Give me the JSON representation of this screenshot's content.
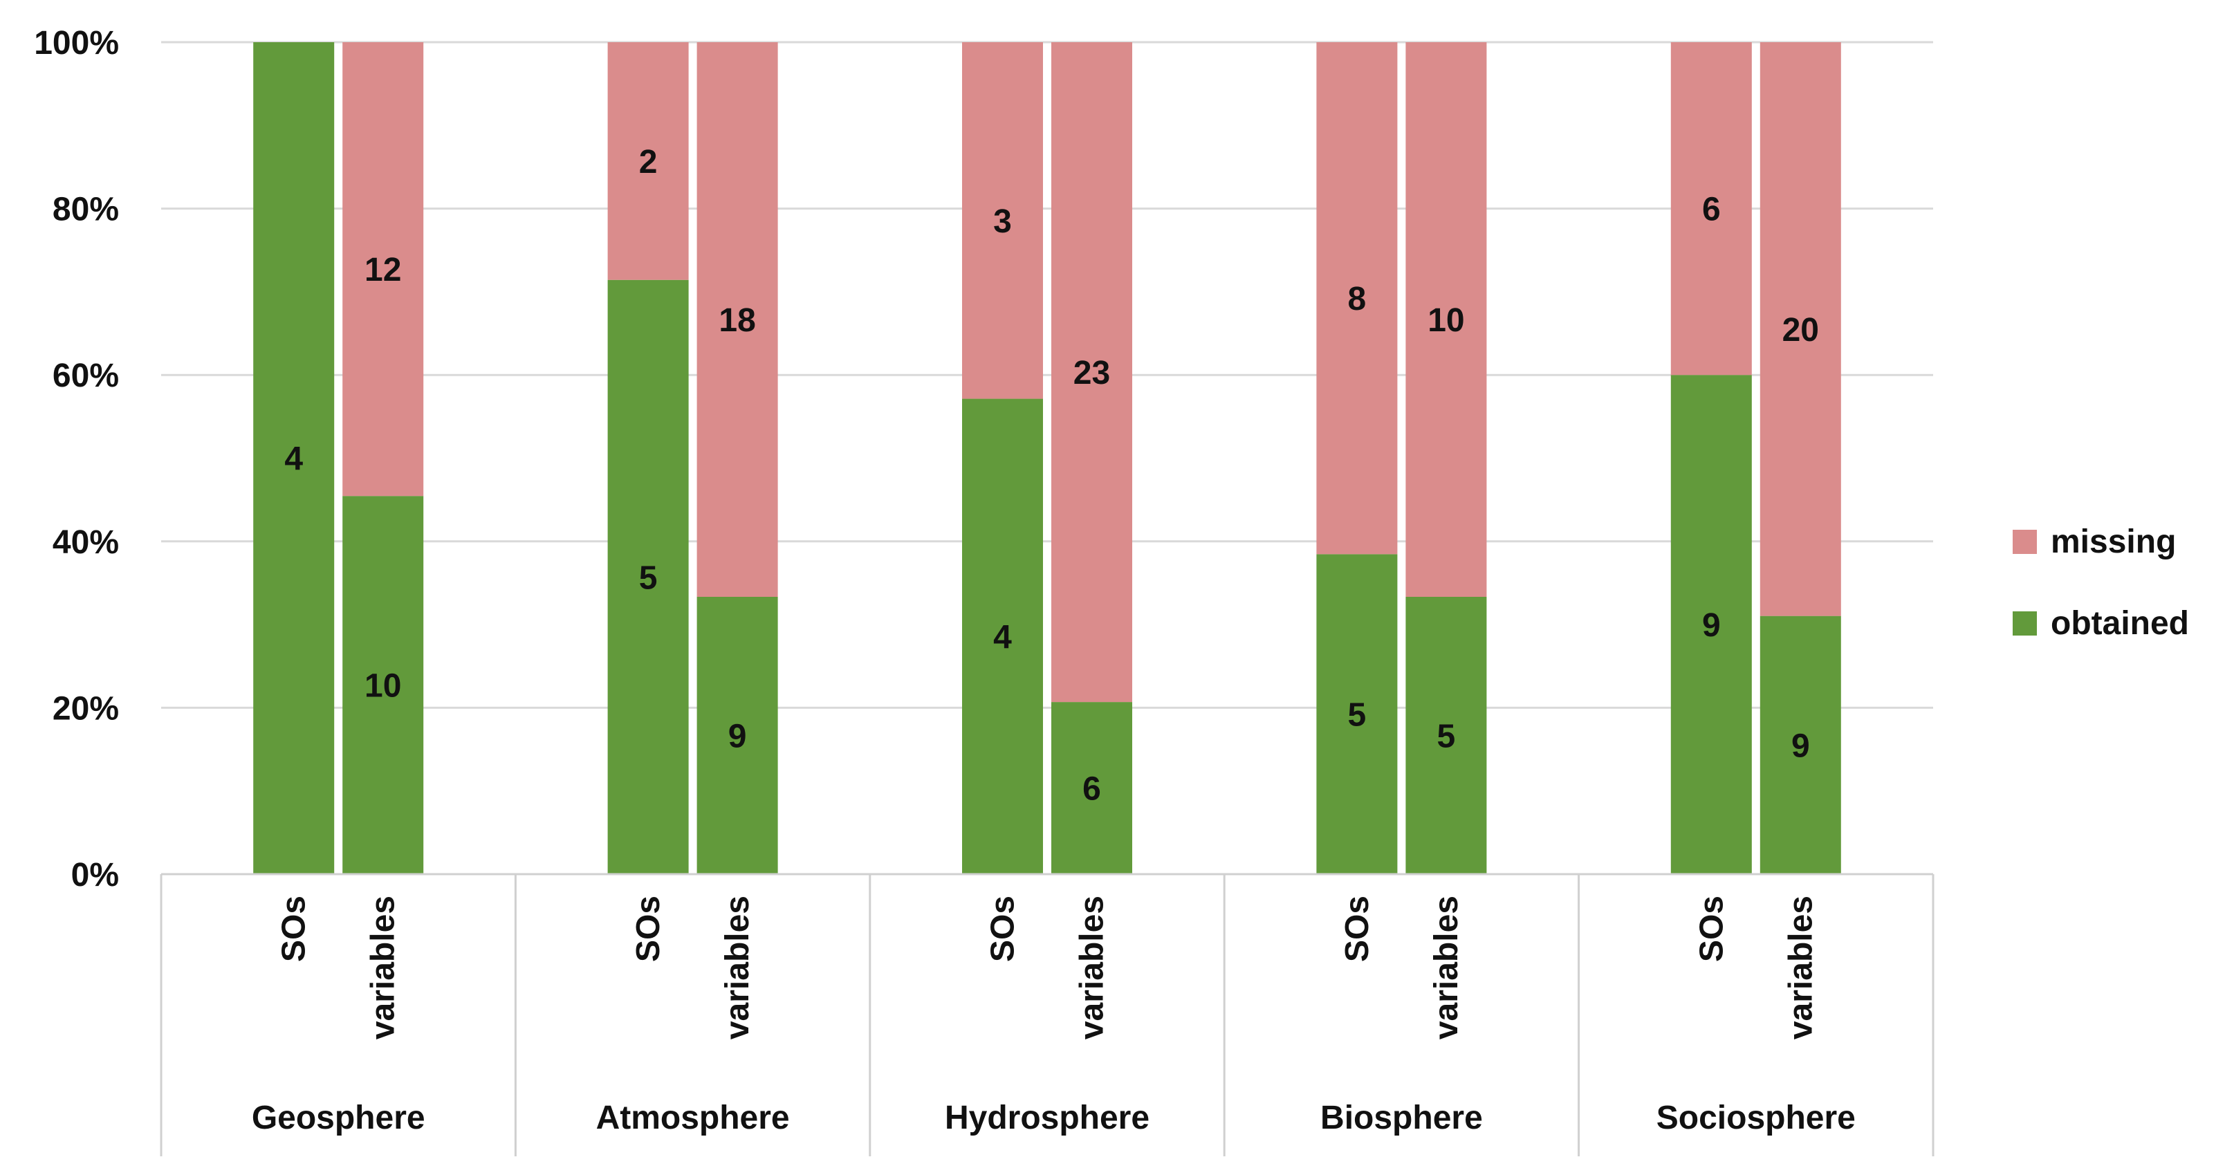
{
  "chart_data": {
    "type": "bar",
    "stacked": true,
    "normalized": true,
    "title": "",
    "xlabel": "",
    "ylabel": "",
    "ylim": [
      0,
      100
    ],
    "y_ticks": [
      "0%",
      "20%",
      "40%",
      "60%",
      "80%",
      "100%"
    ],
    "groups": [
      "Geosphere",
      "Atmosphere",
      "Hydrosphere",
      "Biosphere",
      "Sociosphere"
    ],
    "categories": [
      "SOs",
      "variables"
    ],
    "series": [
      {
        "name": "obtained",
        "color": "#629A3B",
        "values": [
          [
            4,
            10
          ],
          [
            5,
            9
          ],
          [
            4,
            6
          ],
          [
            5,
            5
          ],
          [
            9,
            9
          ]
        ]
      },
      {
        "name": "missing",
        "color": "#DA8C8C",
        "values": [
          [
            0,
            12
          ],
          [
            2,
            18
          ],
          [
            3,
            23
          ],
          [
            8,
            10
          ],
          [
            6,
            20
          ]
        ]
      }
    ],
    "legend_order": [
      "missing",
      "obtained"
    ],
    "legend_position": "right",
    "grid": true
  }
}
